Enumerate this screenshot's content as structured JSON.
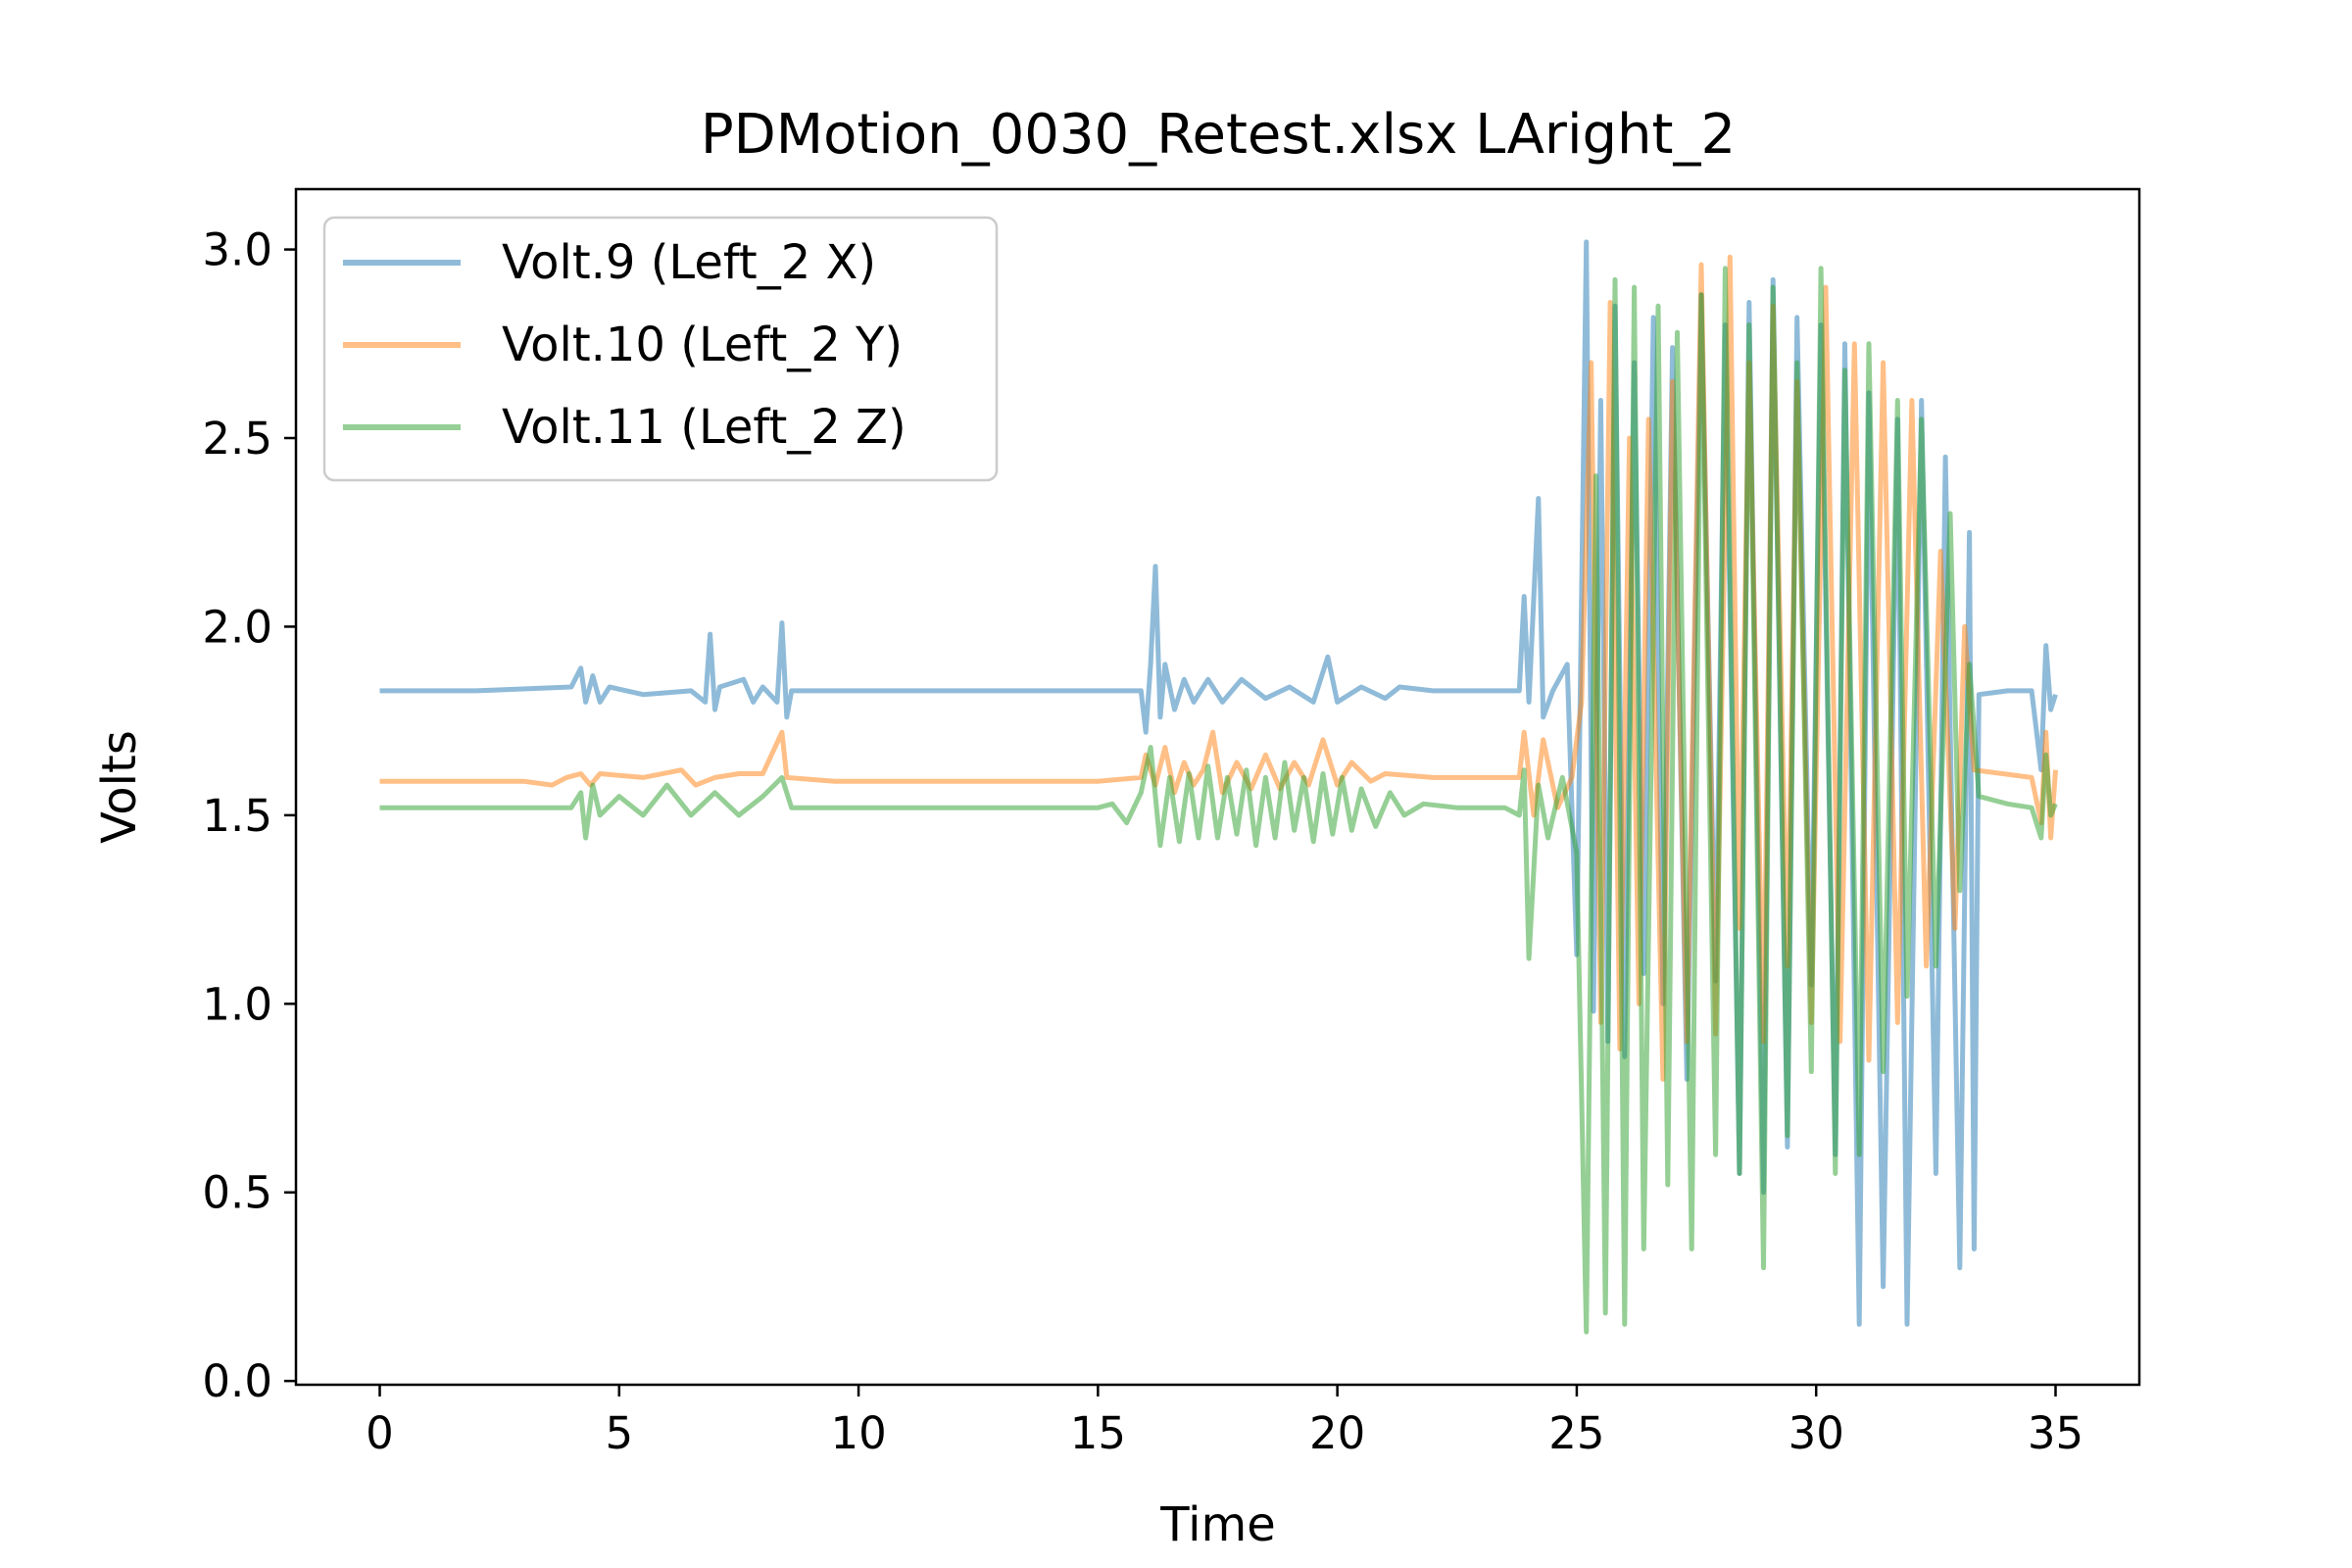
{
  "chart_data": {
    "type": "line",
    "title": "PDMotion_0030_Retest.xlsx LAright_2",
    "xlabel": "Time",
    "ylabel": "Volts",
    "xlim": [
      -1.75,
      36.75
    ],
    "ylim": [
      -0.01,
      3.16
    ],
    "xticks": [
      0,
      5,
      10,
      15,
      20,
      25,
      30,
      35
    ],
    "xtick_labels": [
      "0",
      "5",
      "10",
      "15",
      "20",
      "25",
      "30",
      "35"
    ],
    "yticks": [
      0.0,
      0.5,
      1.0,
      1.5,
      2.0,
      2.5,
      3.0
    ],
    "ytick_labels": [
      "0.0",
      "0.5",
      "1.0",
      "1.5",
      "2.0",
      "2.5",
      "3.0"
    ],
    "grid": false,
    "legend_position": "upper-left",
    "series": [
      {
        "name": "Volt.9 (Left_2 X)",
        "color": "#1f77b4",
        "alpha": 0.5,
        "points": [
          [
            0,
            1.83
          ],
          [
            2.0,
            1.83
          ],
          [
            4.0,
            1.84
          ],
          [
            4.2,
            1.89
          ],
          [
            4.3,
            1.8
          ],
          [
            4.45,
            1.87
          ],
          [
            4.6,
            1.8
          ],
          [
            4.8,
            1.84
          ],
          [
            5.5,
            1.82
          ],
          [
            6.5,
            1.83
          ],
          [
            6.8,
            1.8
          ],
          [
            6.9,
            1.98
          ],
          [
            7.0,
            1.78
          ],
          [
            7.1,
            1.84
          ],
          [
            7.6,
            1.86
          ],
          [
            7.8,
            1.8
          ],
          [
            8.0,
            1.84
          ],
          [
            8.3,
            1.8
          ],
          [
            8.4,
            2.01
          ],
          [
            8.5,
            1.76
          ],
          [
            8.6,
            1.83
          ],
          [
            12,
            1.83
          ],
          [
            15.9,
            1.83
          ],
          [
            16.0,
            1.72
          ],
          [
            16.1,
            1.9
          ],
          [
            16.2,
            2.16
          ],
          [
            16.3,
            1.76
          ],
          [
            16.4,
            1.9
          ],
          [
            16.6,
            1.78
          ],
          [
            16.8,
            1.86
          ],
          [
            17.0,
            1.8
          ],
          [
            17.3,
            1.86
          ],
          [
            17.6,
            1.8
          ],
          [
            18.0,
            1.86
          ],
          [
            18.5,
            1.81
          ],
          [
            19.0,
            1.84
          ],
          [
            19.5,
            1.8
          ],
          [
            19.8,
            1.92
          ],
          [
            20.0,
            1.8
          ],
          [
            20.5,
            1.84
          ],
          [
            21.0,
            1.81
          ],
          [
            21.3,
            1.84
          ],
          [
            22,
            1.83
          ],
          [
            23.8,
            1.83
          ],
          [
            23.9,
            2.08
          ],
          [
            24.0,
            1.8
          ],
          [
            24.2,
            2.34
          ],
          [
            24.3,
            1.76
          ],
          [
            24.5,
            1.83
          ],
          [
            24.8,
            1.9
          ],
          [
            25.0,
            1.13
          ],
          [
            25.2,
            3.02
          ],
          [
            25.35,
            0.98
          ],
          [
            25.5,
            2.6
          ],
          [
            25.65,
            0.9
          ],
          [
            25.8,
            2.85
          ],
          [
            26.0,
            0.86
          ],
          [
            26.2,
            2.7
          ],
          [
            26.4,
            1.08
          ],
          [
            26.6,
            2.82
          ],
          [
            26.8,
            1.0
          ],
          [
            27.0,
            2.74
          ],
          [
            27.3,
            0.8
          ],
          [
            27.6,
            2.88
          ],
          [
            27.9,
            1.06
          ],
          [
            28.1,
            2.8
          ],
          [
            28.4,
            0.55
          ],
          [
            28.6,
            2.86
          ],
          [
            28.9,
            0.5
          ],
          [
            29.1,
            2.92
          ],
          [
            29.4,
            0.62
          ],
          [
            29.6,
            2.82
          ],
          [
            29.9,
            1.05
          ],
          [
            30.1,
            2.8
          ],
          [
            30.4,
            0.6
          ],
          [
            30.6,
            2.75
          ],
          [
            30.9,
            0.15
          ],
          [
            31.1,
            2.62
          ],
          [
            31.4,
            0.25
          ],
          [
            31.7,
            2.55
          ],
          [
            31.9,
            0.15
          ],
          [
            32.2,
            2.6
          ],
          [
            32.5,
            0.55
          ],
          [
            32.7,
            2.45
          ],
          [
            33.0,
            0.3
          ],
          [
            33.2,
            2.25
          ],
          [
            33.3,
            0.35
          ],
          [
            33.4,
            1.82
          ],
          [
            34.0,
            1.83
          ],
          [
            34.5,
            1.83
          ],
          [
            34.7,
            1.62
          ],
          [
            34.8,
            1.95
          ],
          [
            34.9,
            1.78
          ],
          [
            35.0,
            1.82
          ]
        ]
      },
      {
        "name": "Volt.10 (Left_2 Y)",
        "color": "#ff7f0e",
        "alpha": 0.5,
        "points": [
          [
            0,
            1.59
          ],
          [
            3.0,
            1.59
          ],
          [
            3.6,
            1.58
          ],
          [
            3.9,
            1.6
          ],
          [
            4.2,
            1.61
          ],
          [
            4.4,
            1.58
          ],
          [
            4.6,
            1.61
          ],
          [
            5.5,
            1.6
          ],
          [
            6.3,
            1.62
          ],
          [
            6.6,
            1.58
          ],
          [
            7.0,
            1.6
          ],
          [
            7.5,
            1.61
          ],
          [
            8.0,
            1.61
          ],
          [
            8.4,
            1.72
          ],
          [
            8.5,
            1.6
          ],
          [
            9.5,
            1.59
          ],
          [
            15.0,
            1.59
          ],
          [
            15.9,
            1.6
          ],
          [
            16.0,
            1.66
          ],
          [
            16.2,
            1.58
          ],
          [
            16.4,
            1.68
          ],
          [
            16.6,
            1.56
          ],
          [
            16.8,
            1.64
          ],
          [
            17.0,
            1.58
          ],
          [
            17.2,
            1.62
          ],
          [
            17.4,
            1.72
          ],
          [
            17.6,
            1.56
          ],
          [
            17.9,
            1.64
          ],
          [
            18.2,
            1.57
          ],
          [
            18.5,
            1.66
          ],
          [
            18.8,
            1.57
          ],
          [
            19.1,
            1.64
          ],
          [
            19.4,
            1.58
          ],
          [
            19.7,
            1.7
          ],
          [
            20.0,
            1.58
          ],
          [
            20.3,
            1.64
          ],
          [
            20.7,
            1.59
          ],
          [
            21.0,
            1.61
          ],
          [
            22,
            1.6
          ],
          [
            23.8,
            1.6
          ],
          [
            23.9,
            1.72
          ],
          [
            24.1,
            1.5
          ],
          [
            24.3,
            1.7
          ],
          [
            24.6,
            1.52
          ],
          [
            24.9,
            1.6
          ],
          [
            25.1,
            1.8
          ],
          [
            25.3,
            2.7
          ],
          [
            25.5,
            0.95
          ],
          [
            25.7,
            2.86
          ],
          [
            25.9,
            0.88
          ],
          [
            26.1,
            2.5
          ],
          [
            26.3,
            1.0
          ],
          [
            26.5,
            2.55
          ],
          [
            26.8,
            0.8
          ],
          [
            27.0,
            2.65
          ],
          [
            27.3,
            0.9
          ],
          [
            27.6,
            2.96
          ],
          [
            27.9,
            0.92
          ],
          [
            28.2,
            2.98
          ],
          [
            28.4,
            1.2
          ],
          [
            28.6,
            2.7
          ],
          [
            28.9,
            0.9
          ],
          [
            29.1,
            2.85
          ],
          [
            29.4,
            1.1
          ],
          [
            29.6,
            2.65
          ],
          [
            29.9,
            0.95
          ],
          [
            30.2,
            2.9
          ],
          [
            30.5,
            0.9
          ],
          [
            30.8,
            2.75
          ],
          [
            31.1,
            0.85
          ],
          [
            31.4,
            2.7
          ],
          [
            31.7,
            0.95
          ],
          [
            32.0,
            2.6
          ],
          [
            32.3,
            1.1
          ],
          [
            32.6,
            2.2
          ],
          [
            32.9,
            1.2
          ],
          [
            33.1,
            2.0
          ],
          [
            33.3,
            1.62
          ],
          [
            34.5,
            1.6
          ],
          [
            34.7,
            1.48
          ],
          [
            34.8,
            1.72
          ],
          [
            34.9,
            1.44
          ],
          [
            35.0,
            1.62
          ]
        ]
      },
      {
        "name": "Volt.11 (Left_2 Z)",
        "color": "#2ca02c",
        "alpha": 0.5,
        "points": [
          [
            0,
            1.52
          ],
          [
            3.0,
            1.52
          ],
          [
            4.0,
            1.52
          ],
          [
            4.2,
            1.56
          ],
          [
            4.3,
            1.44
          ],
          [
            4.45,
            1.58
          ],
          [
            4.6,
            1.5
          ],
          [
            5.0,
            1.55
          ],
          [
            5.5,
            1.5
          ],
          [
            6.0,
            1.58
          ],
          [
            6.5,
            1.5
          ],
          [
            7.0,
            1.56
          ],
          [
            7.5,
            1.5
          ],
          [
            8.0,
            1.55
          ],
          [
            8.4,
            1.6
          ],
          [
            8.6,
            1.52
          ],
          [
            10,
            1.52
          ],
          [
            15.0,
            1.52
          ],
          [
            15.3,
            1.53
          ],
          [
            15.6,
            1.48
          ],
          [
            15.9,
            1.56
          ],
          [
            16.1,
            1.68
          ],
          [
            16.3,
            1.42
          ],
          [
            16.5,
            1.6
          ],
          [
            16.7,
            1.43
          ],
          [
            16.9,
            1.61
          ],
          [
            17.1,
            1.44
          ],
          [
            17.3,
            1.63
          ],
          [
            17.5,
            1.44
          ],
          [
            17.7,
            1.6
          ],
          [
            17.9,
            1.45
          ],
          [
            18.1,
            1.62
          ],
          [
            18.3,
            1.42
          ],
          [
            18.5,
            1.6
          ],
          [
            18.7,
            1.44
          ],
          [
            18.9,
            1.64
          ],
          [
            19.1,
            1.46
          ],
          [
            19.3,
            1.6
          ],
          [
            19.5,
            1.43
          ],
          [
            19.7,
            1.61
          ],
          [
            19.9,
            1.45
          ],
          [
            20.1,
            1.6
          ],
          [
            20.3,
            1.46
          ],
          [
            20.5,
            1.57
          ],
          [
            20.8,
            1.47
          ],
          [
            21.1,
            1.56
          ],
          [
            21.4,
            1.5
          ],
          [
            21.8,
            1.53
          ],
          [
            22.5,
            1.52
          ],
          [
            23.5,
            1.52
          ],
          [
            23.8,
            1.5
          ],
          [
            23.9,
            1.62
          ],
          [
            24.0,
            1.12
          ],
          [
            24.2,
            1.58
          ],
          [
            24.4,
            1.44
          ],
          [
            24.7,
            1.6
          ],
          [
            25.0,
            1.4
          ],
          [
            25.2,
            0.13
          ],
          [
            25.4,
            2.4
          ],
          [
            25.6,
            0.18
          ],
          [
            25.8,
            2.92
          ],
          [
            26.0,
            0.15
          ],
          [
            26.2,
            2.9
          ],
          [
            26.4,
            0.35
          ],
          [
            26.7,
            2.85
          ],
          [
            26.9,
            0.52
          ],
          [
            27.1,
            2.78
          ],
          [
            27.4,
            0.35
          ],
          [
            27.6,
            2.88
          ],
          [
            27.9,
            0.6
          ],
          [
            28.1,
            2.95
          ],
          [
            28.4,
            0.55
          ],
          [
            28.6,
            2.8
          ],
          [
            28.9,
            0.3
          ],
          [
            29.1,
            2.9
          ],
          [
            29.4,
            0.65
          ],
          [
            29.6,
            2.7
          ],
          [
            29.9,
            0.82
          ],
          [
            30.1,
            2.95
          ],
          [
            30.4,
            0.55
          ],
          [
            30.6,
            2.68
          ],
          [
            30.9,
            0.6
          ],
          [
            31.1,
            2.75
          ],
          [
            31.4,
            0.82
          ],
          [
            31.7,
            2.6
          ],
          [
            31.9,
            1.02
          ],
          [
            32.2,
            2.55
          ],
          [
            32.5,
            1.1
          ],
          [
            32.8,
            2.3
          ],
          [
            33.0,
            1.3
          ],
          [
            33.2,
            1.9
          ],
          [
            33.4,
            1.55
          ],
          [
            34.0,
            1.53
          ],
          [
            34.5,
            1.52
          ],
          [
            34.7,
            1.44
          ],
          [
            34.8,
            1.66
          ],
          [
            34.9,
            1.5
          ],
          [
            35.0,
            1.53
          ]
        ]
      }
    ]
  }
}
